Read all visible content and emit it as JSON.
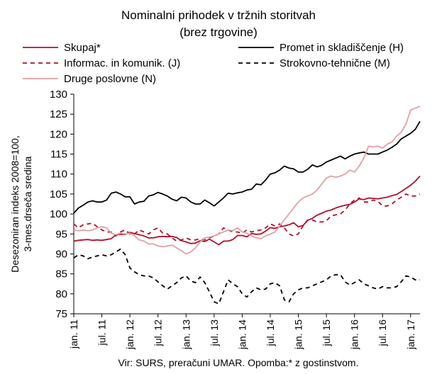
{
  "chart_data": {
    "type": "line",
    "title": "Nominalni prihodek v tržnih storitvah",
    "subtitle": "(brez trgovine)",
    "ylabel_lines": [
      "Desezoniran indeks 2008=100,",
      "3-mes.drseča sredina"
    ],
    "ylim": [
      75,
      130
    ],
    "yticks": [
      75,
      80,
      85,
      90,
      95,
      100,
      105,
      110,
      115,
      120,
      125,
      130
    ],
    "x_start": "2011-01",
    "x_end": "2017-01",
    "x_tick_labels": [
      "jan. 11",
      "jul. 11",
      "jan. 12",
      "jul. 12",
      "jan. 13",
      "jul. 13",
      "jan. 14",
      "jul. 14",
      "jan. 15",
      "jul. 15",
      "jan. 16",
      "jul. 16",
      "jan. 17"
    ],
    "grid": false,
    "legend_position": "top",
    "series": [
      {
        "name": "Skupaj*",
        "color": "#b0102a",
        "dash": "solid",
        "values": [
          93.2,
          93.4,
          93.5,
          93.6,
          93.4,
          93.5,
          93.4,
          93.6,
          93.8,
          94.8,
          94.9,
          94.9,
          95.4,
          95.1,
          94.8,
          94.5,
          94.0,
          94.0,
          94.3,
          94.4,
          94.3,
          94.4,
          94.1,
          93.3,
          93.0,
          92.6,
          92.7,
          93.3,
          93.1,
          93.7,
          93.0,
          92.3,
          93.2,
          93.2,
          93.6,
          94.6,
          94.6,
          94.3,
          95.1,
          94.9,
          95.0,
          95.7,
          96.6,
          96.4,
          96.8,
          97.0,
          97.3,
          97.8,
          96.8,
          97.1,
          98.4,
          98.9,
          99.7,
          100.2,
          100.7,
          101.0,
          101.5,
          101.9,
          102.2,
          102.4,
          103.0,
          103.8,
          103.6,
          104.0,
          103.9,
          103.8,
          104.0,
          104.2,
          104.6,
          104.9,
          105.6,
          106.4,
          107.2,
          108.2,
          109.5
        ]
      },
      {
        "name": "Promet in skladiščenje (H)",
        "color": "#000000",
        "dash": "solid",
        "values": [
          100.2,
          101.5,
          102.2,
          103.0,
          103.3,
          103.0,
          103.0,
          103.5,
          105.2,
          105.5,
          105.0,
          104.3,
          104.3,
          102.5,
          103.0,
          103.2,
          104.5,
          104.8,
          105.4,
          105.0,
          104.5,
          103.7,
          103.3,
          104.2,
          104.0,
          103.0,
          102.5,
          102.5,
          103.5,
          102.8,
          102.0,
          103.0,
          104.0,
          105.2,
          105.0,
          105.3,
          105.5,
          106.0,
          106.2,
          107.5,
          107.3,
          108.5,
          110.0,
          110.3,
          111.0,
          112.0,
          111.5,
          111.3,
          110.5,
          110.5,
          111.2,
          112.3,
          111.8,
          112.2,
          113.0,
          113.5,
          114.0,
          114.5,
          113.8,
          114.5,
          115.0,
          115.3,
          115.5,
          115.0,
          115.0,
          115.0,
          115.5,
          116.0,
          116.7,
          117.5,
          118.8,
          119.5,
          120.2,
          121.2,
          123.2
        ]
      },
      {
        "name": "Informac. in komunik. (J)",
        "color": "#b0102a",
        "dash": "dashed",
        "values": [
          97.5,
          96.5,
          97.3,
          97.5,
          97.7,
          96.8,
          96.0,
          95.5,
          95.5,
          94.5,
          95.5,
          96.0,
          95.0,
          95.0,
          96.0,
          95.5,
          95.0,
          96.0,
          96.5,
          95.2,
          95.0,
          94.0,
          93.2,
          93.5,
          94.0,
          93.5,
          93.5,
          93.8,
          93.5,
          94.0,
          94.5,
          95.0,
          96.5,
          96.0,
          95.5,
          95.5,
          95.2,
          96.0,
          95.5,
          95.8,
          96.0,
          96.5,
          97.5,
          97.0,
          97.5,
          96.5,
          95.0,
          94.5,
          95.0,
          97.0,
          98.5,
          98.5,
          98.0,
          98.0,
          98.3,
          99.5,
          99.8,
          100.0,
          101.0,
          102.5,
          103.5,
          104.0,
          103.0,
          103.0,
          103.5,
          103.2,
          102.0,
          102.0,
          102.5,
          103.5,
          104.2,
          105.0,
          104.5,
          104.5,
          105.0
        ]
      },
      {
        "name": "Strokovno-tehnične (M)",
        "color": "#000000",
        "dash": "dashed",
        "values": [
          89.0,
          89.8,
          89.5,
          88.8,
          89.2,
          89.5,
          89.8,
          89.5,
          89.8,
          90.5,
          91.2,
          89.8,
          86.5,
          85.5,
          84.8,
          84.5,
          84.5,
          84.0,
          83.0,
          82.0,
          81.2,
          82.0,
          82.8,
          84.0,
          84.5,
          83.2,
          82.8,
          84.2,
          82.8,
          80.5,
          78.0,
          77.5,
          80.5,
          83.5,
          82.5,
          81.8,
          80.0,
          79.2,
          80.5,
          81.5,
          81.0,
          81.2,
          82.5,
          82.8,
          82.0,
          78.5,
          78.0,
          80.0,
          81.0,
          81.5,
          81.5,
          82.0,
          82.5,
          83.0,
          83.5,
          84.5,
          84.8,
          84.8,
          83.0,
          82.2,
          82.8,
          83.5,
          82.5,
          82.0,
          81.5,
          81.2,
          81.8,
          81.5,
          81.5,
          81.8,
          83.0,
          84.5,
          84.2,
          83.5,
          83.5
        ]
      },
      {
        "name": "Druge poslovne (N)",
        "color": "#e2a0a3",
        "dash": "solid",
        "values": [
          96.0,
          95.8,
          96.0,
          95.8,
          96.0,
          96.5,
          96.8,
          96.5,
          95.2,
          94.8,
          95.2,
          95.0,
          95.2,
          94.5,
          93.5,
          93.2,
          92.5,
          92.5,
          92.0,
          91.8,
          92.0,
          92.2,
          91.5,
          90.8,
          90.0,
          90.5,
          91.5,
          93.0,
          94.0,
          94.2,
          94.5,
          95.0,
          95.5,
          96.0,
          95.8,
          96.5,
          95.5,
          95.2,
          94.5,
          94.0,
          93.8,
          94.5,
          95.0,
          95.5,
          97.0,
          98.5,
          100.0,
          101.5,
          103.0,
          104.0,
          104.5,
          105.0,
          106.0,
          107.5,
          109.0,
          109.5,
          109.2,
          109.5,
          110.0,
          111.0,
          110.5,
          112.0,
          114.0,
          117.0,
          116.8,
          117.0,
          116.5,
          117.5,
          118.0,
          119.5,
          120.5,
          122.5,
          126.0,
          126.5,
          127.0
        ]
      }
    ]
  },
  "footnote": "Vir: SURS, preračuni UMAR. Opomba:* z gostinstvom."
}
